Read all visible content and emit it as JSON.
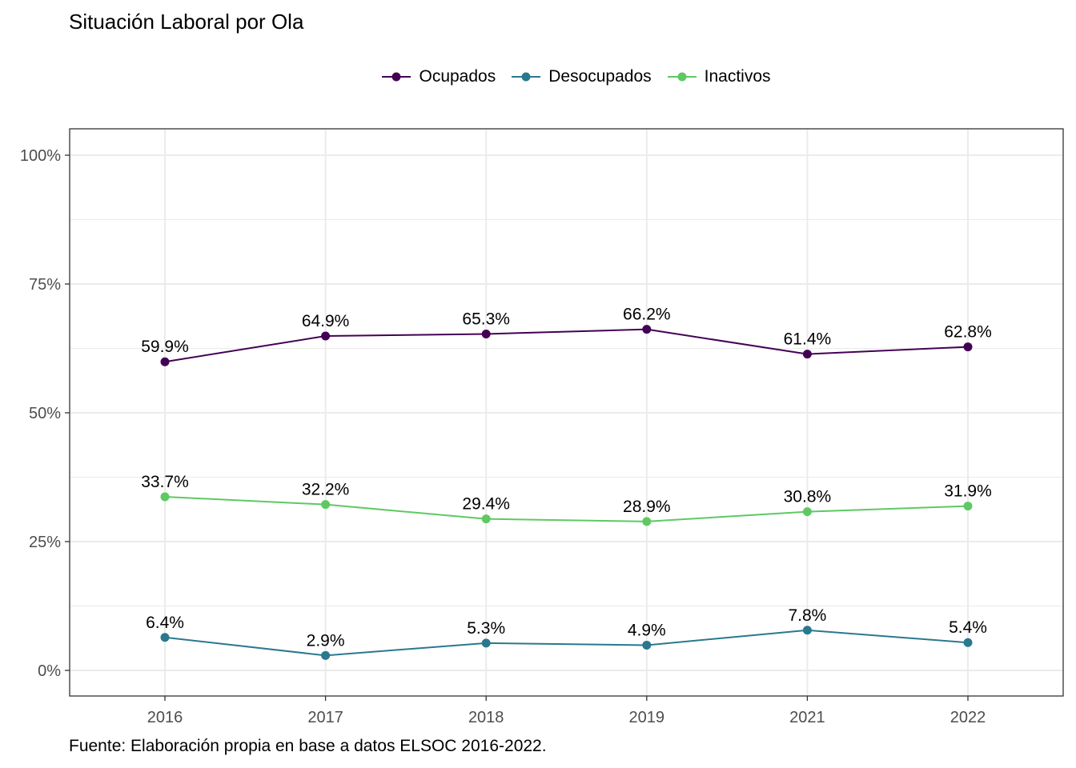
{
  "chart_data": {
    "type": "line",
    "title": "Situación Laboral por Ola",
    "caption": "Fuente: Elaboración propia en base a datos ELSOC 2016-2022.",
    "xlabel": "",
    "ylabel": "",
    "categories": [
      "2016",
      "2017",
      "2018",
      "2019",
      "2021",
      "2022"
    ],
    "ylim": [
      0,
      100
    ],
    "yticks": [
      0,
      25,
      50,
      75,
      100
    ],
    "ytick_labels": [
      "0%",
      "25%",
      "50%",
      "75%",
      "100%"
    ],
    "grid": true,
    "legend_position": "top",
    "series": [
      {
        "name": "Ocupados",
        "color": "#440154",
        "values": [
          59.9,
          64.9,
          65.3,
          66.2,
          61.4,
          62.8
        ],
        "labels": [
          "59.9%",
          "64.9%",
          "65.3%",
          "66.2%",
          "61.4%",
          "62.8%"
        ]
      },
      {
        "name": "Desocupados",
        "color": "#2a788e",
        "values": [
          6.4,
          2.9,
          5.3,
          4.9,
          7.8,
          5.4
        ],
        "labels": [
          "6.4%",
          "2.9%",
          "5.3%",
          "4.9%",
          "7.8%",
          "5.4%"
        ]
      },
      {
        "name": "Inactivos",
        "color": "#5ec962",
        "values": [
          33.7,
          32.2,
          29.4,
          28.9,
          30.8,
          31.9
        ],
        "labels": [
          "33.7%",
          "32.2%",
          "29.4%",
          "28.9%",
          "30.8%",
          "31.9%"
        ]
      }
    ]
  }
}
